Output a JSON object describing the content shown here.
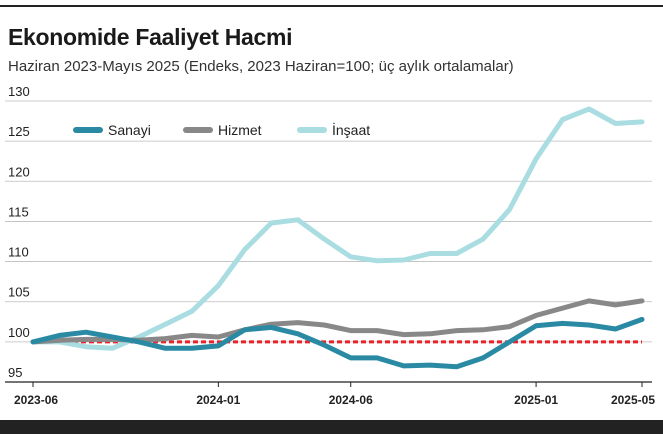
{
  "header": {
    "title": "Ekonomide Faaliyet Hacmi",
    "subtitle": "Haziran 2023-Mayıs 2025 (Endeks, 2023 Haziran=100; üç aylık ortalamalar)"
  },
  "colors": {
    "Sanayi": "#2a8aa4",
    "Hizmet": "#888888",
    "İnşaat": "#a9dde2",
    "reference": "#e8232b"
  },
  "chart_data": {
    "type": "line",
    "title": "Ekonomide Faaliyet Hacmi",
    "subtitle": "Haziran 2023-Mayıs 2025 (Endeks, 2023 Haziran=100; üç aylık ortalamalar)",
    "xlabel": "",
    "ylabel": "",
    "x": [
      "2023-06",
      "2023-07",
      "2023-08",
      "2023-09",
      "2023-10",
      "2023-11",
      "2023-12",
      "2024-01",
      "2024-02",
      "2024-03",
      "2024-04",
      "2024-05",
      "2024-06",
      "2024-07",
      "2024-08",
      "2024-09",
      "2024-10",
      "2024-11",
      "2024-12",
      "2025-01",
      "2025-02",
      "2025-03",
      "2025-04",
      "2025-05"
    ],
    "x_tick_labels": [
      "2023-06",
      "2024-01",
      "2024-06",
      "2025-01",
      "2025-05"
    ],
    "x_tick_positions": [
      0,
      7,
      12,
      19,
      23
    ],
    "ylim": [
      95,
      130
    ],
    "yticks": [
      95,
      100,
      105,
      110,
      115,
      120,
      125,
      130
    ],
    "grid": "horizontal",
    "legend_position": "top-left",
    "reference_line": 100,
    "series": [
      {
        "name": "Sanayi",
        "values": [
          100.0,
          100.8,
          101.2,
          100.6,
          100.0,
          99.2,
          99.2,
          99.5,
          101.5,
          101.8,
          101.0,
          99.6,
          98.0,
          98.0,
          97.0,
          97.1,
          96.9,
          98.0,
          100.0,
          102.0,
          102.3,
          102.1,
          101.6,
          102.8
        ]
      },
      {
        "name": "Hizmet",
        "values": [
          100.0,
          100.2,
          100.3,
          100.3,
          100.2,
          100.4,
          100.8,
          100.6,
          101.5,
          102.2,
          102.4,
          102.1,
          101.4,
          101.4,
          100.9,
          101.0,
          101.4,
          101.5,
          101.9,
          103.3,
          104.2,
          105.1,
          104.6,
          105.1
        ]
      },
      {
        "name": "İnşaat",
        "values": [
          100.0,
          100.0,
          99.4,
          99.2,
          100.6,
          102.2,
          103.8,
          107.0,
          111.5,
          114.8,
          115.2,
          112.8,
          110.6,
          110.1,
          110.2,
          111.0,
          111.0,
          112.8,
          116.5,
          122.8,
          127.7,
          129.0,
          127.2,
          127.4
        ]
      }
    ]
  }
}
